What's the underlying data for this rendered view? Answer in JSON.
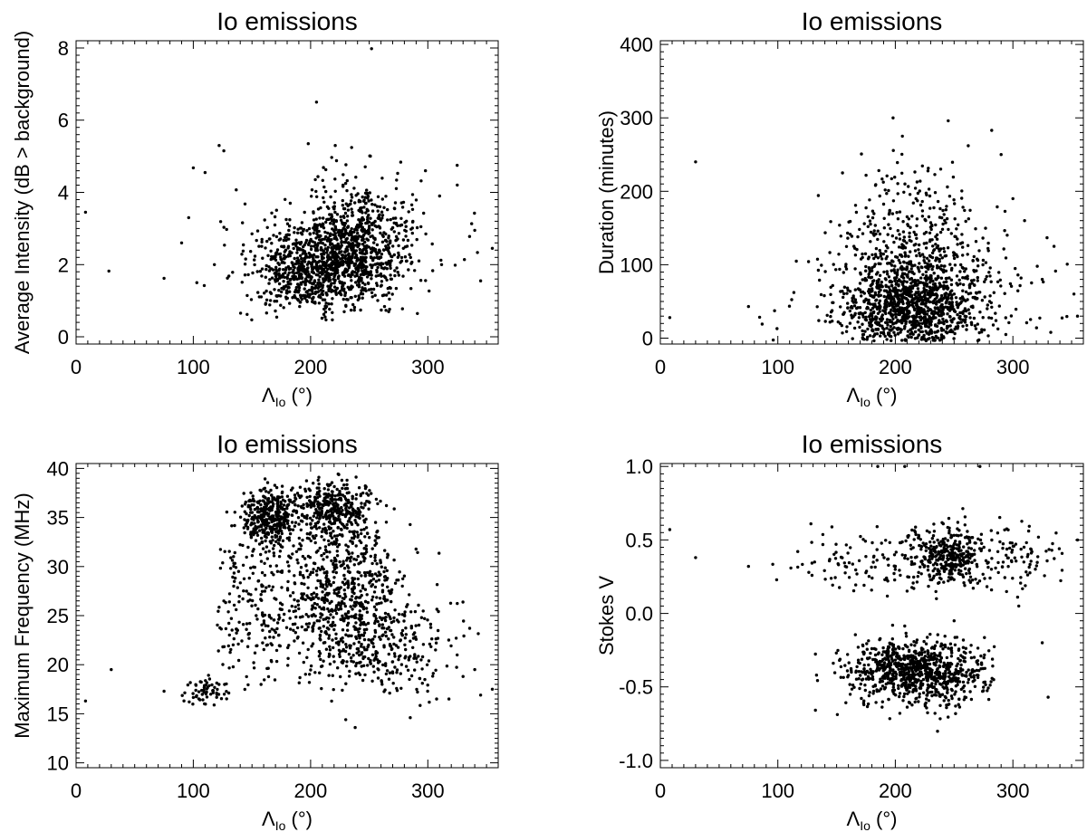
{
  "figure": {
    "background": "#ffffff",
    "ink": "#000000"
  },
  "chart_data": [
    {
      "type": "scatter",
      "title": "Io emissions",
      "xlabel": "Λ",
      "xlabel_sub": "Io",
      "xlabel_unit": " (°)",
      "ylabel": "Average Intensity (dB > background)",
      "xlim": [
        0,
        360
      ],
      "ylim": [
        -0.2,
        8.2
      ],
      "xticks": [
        0,
        100,
        200,
        300
      ],
      "xtick_labels": [
        "0",
        "100",
        "200",
        "300"
      ],
      "yticks": [
        0,
        2,
        4,
        6,
        8
      ],
      "ytick_labels": [
        "0",
        "2",
        "4",
        "6",
        "8"
      ],
      "grid": false,
      "points": [
        [
          8,
          3.45
        ],
        [
          28,
          1.82
        ],
        [
          75,
          1.62
        ],
        [
          90,
          2.6
        ],
        [
          96,
          3.3
        ],
        [
          100,
          4.68
        ],
        [
          103,
          1.5
        ],
        [
          110,
          4.55
        ],
        [
          118,
          2.0
        ],
        [
          122,
          5.3
        ],
        [
          126,
          5.15
        ],
        [
          205,
          6.5
        ],
        [
          198,
          5.35
        ],
        [
          221,
          5.3
        ],
        [
          252,
          7.98
        ],
        [
          325,
          4.75
        ],
        [
          355,
          2.45
        ],
        [
          340,
          2.95
        ],
        [
          345,
          1.55
        ],
        [
          298,
          4.6
        ],
        [
          310,
          3.9
        ]
      ],
      "clusters": [
        {
          "n": 700,
          "cx": 200,
          "sx": 28,
          "cy": 1.8,
          "sy": 0.55,
          "xmin": 140,
          "xmax": 300,
          "ymin": 0.45,
          "ymax": 5.3
        },
        {
          "n": 650,
          "cx": 240,
          "sx": 22,
          "cy": 2.6,
          "sy": 0.85,
          "xmin": 150,
          "xmax": 300,
          "ymin": 0.6,
          "ymax": 5.5
        },
        {
          "n": 150,
          "cx": 230,
          "sx": 60,
          "cy": 2.5,
          "sy": 0.8,
          "xmin": 95,
          "xmax": 345,
          "ymin": 0.8,
          "ymax": 4.8
        }
      ]
    },
    {
      "type": "scatter",
      "title": "Io emissions",
      "xlabel": "Λ",
      "xlabel_sub": "Io",
      "xlabel_unit": " (°)",
      "ylabel": "Duration (minutes)",
      "xlim": [
        0,
        360
      ],
      "ylim": [
        -8,
        405
      ],
      "xticks": [
        0,
        100,
        200,
        300
      ],
      "xtick_labels": [
        "0",
        "100",
        "200",
        "300"
      ],
      "yticks": [
        0,
        100,
        200,
        300,
        400
      ],
      "ytick_labels": [
        "0",
        "100",
        "200",
        "300",
        "400"
      ],
      "grid": false,
      "points": [
        [
          8,
          28
        ],
        [
          30,
          240
        ],
        [
          75,
          43
        ],
        [
          155,
          225
        ],
        [
          198,
          300
        ],
        [
          206,
          275
        ],
        [
          245,
          296
        ],
        [
          262,
          262
        ],
        [
          282,
          283
        ],
        [
          290,
          250
        ],
        [
          335,
          125
        ],
        [
          352,
          60
        ],
        [
          355,
          30
        ],
        [
          325,
          80
        ],
        [
          310,
          160
        ],
        [
          300,
          190
        ]
      ],
      "clusters": [
        {
          "n": 900,
          "cx": 215,
          "sx": 30,
          "cy": 40,
          "sy": 30,
          "xmin": 130,
          "xmax": 300,
          "ymin": -4,
          "ymax": 200
        },
        {
          "n": 500,
          "cx": 220,
          "sx": 32,
          "cy": 110,
          "sy": 55,
          "xmin": 130,
          "xmax": 300,
          "ymin": 0,
          "ymax": 260
        },
        {
          "n": 150,
          "cx": 230,
          "sx": 70,
          "cy": 50,
          "sy": 35,
          "xmin": 80,
          "xmax": 350,
          "ymin": -4,
          "ymax": 180
        }
      ]
    },
    {
      "type": "scatter",
      "title": "Io emissions",
      "xlabel": "Λ",
      "xlabel_sub": "Io",
      "xlabel_unit": " (°)",
      "ylabel": "Maximum Frequency (MHz)",
      "xlim": [
        0,
        360
      ],
      "ylim": [
        9.5,
        40.5
      ],
      "xticks": [
        0,
        100,
        200,
        300
      ],
      "xtick_labels": [
        "0",
        "100",
        "200",
        "300"
      ],
      "yticks": [
        10,
        15,
        20,
        25,
        30,
        35,
        40
      ],
      "ytick_labels": [
        "10",
        "15",
        "20",
        "25",
        "30",
        "35",
        "40"
      ],
      "grid": false,
      "points": [
        [
          8,
          16.3
        ],
        [
          30,
          19.5
        ],
        [
          75,
          17.3
        ],
        [
          238,
          13.6
        ],
        [
          230,
          14.4
        ],
        [
          285,
          14.6
        ],
        [
          318,
          16.5
        ],
        [
          355,
          17.5
        ],
        [
          345,
          16.9
        ],
        [
          340,
          19.5
        ],
        [
          330,
          18.8
        ],
        [
          325,
          21.0
        ]
      ],
      "clusters": [
        {
          "n": 350,
          "cx": 165,
          "sx": 12,
          "cy": 35.0,
          "sy": 1.6,
          "xmin": 140,
          "xmax": 200,
          "ymin": 29,
          "ymax": 39
        },
        {
          "n": 350,
          "cx": 220,
          "sx": 18,
          "cy": 36.0,
          "sy": 1.4,
          "xmin": 185,
          "xmax": 260,
          "ymin": 31,
          "ymax": 39.5
        },
        {
          "n": 700,
          "cx": 225,
          "sx": 28,
          "cy": 27.5,
          "sy": 4.0,
          "xmin": 140,
          "xmax": 310,
          "ymin": 18,
          "ymax": 38
        },
        {
          "n": 250,
          "cx": 265,
          "sx": 28,
          "cy": 21.5,
          "sy": 2.5,
          "xmin": 200,
          "xmax": 345,
          "ymin": 15,
          "ymax": 27
        },
        {
          "n": 200,
          "cx": 150,
          "sx": 20,
          "cy": 26.0,
          "sy": 5.0,
          "xmin": 120,
          "xmax": 200,
          "ymin": 17,
          "ymax": 38
        },
        {
          "n": 60,
          "cx": 110,
          "sx": 12,
          "cy": 17.3,
          "sy": 0.8,
          "xmin": 90,
          "xmax": 140,
          "ymin": 15,
          "ymax": 19
        }
      ]
    },
    {
      "type": "scatter",
      "title": "Io emissions",
      "xlabel": "Λ",
      "xlabel_sub": "Io",
      "xlabel_unit": " (°)",
      "ylabel": "Stokes V",
      "xlim": [
        0,
        360
      ],
      "ylim": [
        -1.05,
        1.02
      ],
      "xticks": [
        0,
        100,
        200,
        300
      ],
      "xtick_labels": [
        "0",
        "100",
        "200",
        "300"
      ],
      "yticks": [
        -1.0,
        -0.5,
        0.0,
        0.5,
        1.0
      ],
      "ytick_labels": [
        "-1.0",
        "-0.5",
        "0.0",
        "0.5",
        "1.0"
      ],
      "grid": false,
      "points": [
        [
          8,
          0.57
        ],
        [
          30,
          0.38
        ],
        [
          75,
          0.32
        ],
        [
          185,
          1.0
        ],
        [
          208,
          1.0
        ],
        [
          272,
          1.0
        ],
        [
          355,
          0.5
        ],
        [
          330,
          -0.57
        ],
        [
          325,
          -0.2
        ],
        [
          305,
          0.05
        ],
        [
          250,
          -0.05
        ],
        [
          235,
          0.1
        ]
      ],
      "clusters": [
        {
          "n": 900,
          "cx": 220,
          "sx": 30,
          "cy": -0.4,
          "sy": 0.11,
          "xmin": 130,
          "xmax": 285,
          "ymin": -0.85,
          "ymax": -0.05
        },
        {
          "n": 350,
          "cx": 240,
          "sx": 60,
          "cy": 0.37,
          "sy": 0.12,
          "xmin": 95,
          "xmax": 345,
          "ymin": 0.1,
          "ymax": 0.72
        },
        {
          "n": 200,
          "cx": 245,
          "sx": 12,
          "cy": 0.4,
          "sy": 0.1,
          "xmin": 215,
          "xmax": 275,
          "ymin": 0.15,
          "ymax": 0.7
        }
      ]
    }
  ]
}
